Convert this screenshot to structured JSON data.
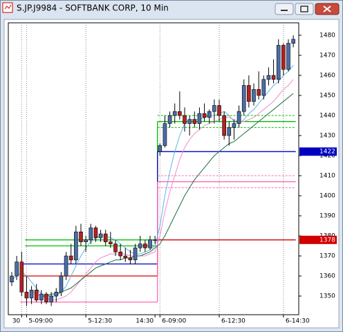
{
  "chart_data": {
    "type": "candlestick",
    "title": "S.JP.J9984 - SOFTBANK CORP, 10 Min",
    "up_color": "#4a6ea8",
    "down_color": "#b22222",
    "open": [
      1357,
      1360,
      1367,
      1352,
      1349,
      1353,
      1348,
      1351,
      1347,
      1350,
      1352,
      1360,
      1370,
      1368,
      1382,
      1377,
      1378,
      1384,
      1379,
      1381,
      1377,
      1376,
      1372,
      1370,
      1369,
      1368,
      1374,
      1376,
      1374,
      1378,
      1422,
      1425,
      1436,
      1440,
      1442,
      1440,
      1436,
      1438,
      1436,
      1441,
      1439,
      1442,
      1445,
      1440,
      1430,
      1434,
      1436,
      1442,
      1455,
      1447,
      1453,
      1450,
      1458,
      1460,
      1458,
      1475,
      1463,
      1476
    ],
    "high": [
      1362,
      1370,
      1372,
      1360,
      1355,
      1356,
      1353,
      1352,
      1352,
      1354,
      1362,
      1372,
      1376,
      1385,
      1386,
      1380,
      1386,
      1385,
      1383,
      1383,
      1382,
      1378,
      1376,
      1374,
      1373,
      1376,
      1380,
      1378,
      1380,
      1380,
      1426,
      1440,
      1442,
      1446,
      1452,
      1444,
      1440,
      1442,
      1444,
      1446,
      1443,
      1448,
      1448,
      1442,
      1437,
      1438,
      1445,
      1458,
      1460,
      1456,
      1462,
      1460,
      1464,
      1468,
      1478,
      1476,
      1478,
      1480
    ],
    "low": [
      1355,
      1358,
      1350,
      1345,
      1346,
      1347,
      1346,
      1346,
      1345,
      1347,
      1350,
      1358,
      1366,
      1366,
      1375,
      1372,
      1376,
      1377,
      1377,
      1375,
      1374,
      1370,
      1368,
      1367,
      1366,
      1366,
      1372,
      1372,
      1373,
      1376,
      1420,
      1424,
      1434,
      1436,
      1438,
      1432,
      1430,
      1434,
      1433,
      1437,
      1436,
      1436,
      1437,
      1428,
      1425,
      1428,
      1434,
      1440,
      1444,
      1445,
      1448,
      1448,
      1455,
      1456,
      1456,
      1460,
      1462,
      1474
    ],
    "close": [
      1360,
      1367,
      1352,
      1349,
      1353,
      1348,
      1351,
      1347,
      1350,
      1352,
      1360,
      1370,
      1368,
      1382,
      1377,
      1378,
      1384,
      1379,
      1381,
      1377,
      1376,
      1372,
      1370,
      1369,
      1368,
      1374,
      1376,
      1374,
      1378,
      1378,
      1425,
      1436,
      1440,
      1442,
      1440,
      1436,
      1438,
      1436,
      1441,
      1439,
      1442,
      1445,
      1440,
      1430,
      1434,
      1436,
      1442,
      1455,
      1447,
      1453,
      1450,
      1458,
      1460,
      1458,
      1475,
      1463,
      1476,
      1478
    ],
    "lines": [
      {
        "color": "#5fb4e8",
        "values": [
          1358,
          1360,
          1362,
          1360,
          1357,
          1354,
          1351,
          1350,
          1350,
          1350,
          1352,
          1355,
          1360,
          1365,
          1370,
          1374,
          1377,
          1379,
          1380,
          1380,
          1379,
          1378,
          1376,
          1374,
          1372,
          1371,
          1371,
          1372,
          1373,
          1375,
          1385,
          1400,
          1412,
          1422,
          1430,
          1436,
          1438,
          1438,
          1438,
          1439,
          1440,
          1440,
          1441,
          1442,
          1440,
          1437,
          1436,
          1438,
          1441,
          1443,
          1446,
          1449,
          1452,
          1455,
          1457,
          1460,
          1462,
          1465
        ]
      },
      {
        "color": "#f08cc8",
        "values": [
          null,
          null,
          null,
          null,
          1352,
          1351,
          1350,
          1349,
          1348,
          1348,
          1349,
          1350,
          1352,
          1355,
          1358,
          1361,
          1364,
          1367,
          1369,
          1370,
          1371,
          1371,
          1371,
          1371,
          1370,
          1370,
          1370,
          1370,
          1371,
          1372,
          1380,
          1392,
          1402,
          1410,
          1418,
          1424,
          1428,
          1431,
          1433,
          1435,
          1436,
          1437,
          1438,
          1439,
          1439,
          1438,
          1437,
          1437,
          1438,
          1439,
          1441,
          1443,
          1445,
          1447,
          1450,
          1453,
          1455,
          1458
        ]
      },
      {
        "color": "#1e6b3a",
        "values": [
          null,
          null,
          null,
          null,
          null,
          null,
          1350,
          1350,
          1351,
          1351,
          1352,
          1353,
          1354,
          1356,
          1358,
          1360,
          1362,
          1364,
          1365,
          1366,
          1367,
          1368,
          1368,
          1369,
          1369,
          1370,
          1370,
          1371,
          1372,
          1374,
          1376,
          1380,
          1385,
          1390,
          1395,
          1400,
          1404,
          1408,
          1411,
          1414,
          1417,
          1420,
          1422,
          1424,
          1426,
          1427,
          1429,
          1431,
          1433,
          1435,
          1437,
          1439,
          1441,
          1443,
          1445,
          1447,
          1449,
          1451
        ]
      }
    ],
    "levels": [
      {
        "color": "#00c000",
        "values": [
          1378,
          1437
        ]
      },
      {
        "color": "#00c000",
        "values": [
          1375,
          null
        ]
      },
      {
        "color": "#00c000",
        "dash": true,
        "values": [
          null,
          1440
        ]
      },
      {
        "color": "#00c000",
        "dash": true,
        "values": [
          null,
          1434
        ]
      },
      {
        "color": "#0000c0",
        "values": [
          1366,
          1422
        ]
      },
      {
        "color": "#d00000",
        "values": [
          1360,
          1378
        ]
      },
      {
        "color": "#ff69b4",
        "values": [
          1347,
          1407
        ]
      },
      {
        "color": "#ff69b4",
        "dash": true,
        "values": [
          null,
          1410
        ]
      },
      {
        "color": "#ff69b4",
        "dash": true,
        "values": [
          null,
          1404
        ]
      }
    ],
    "price_tags": [
      {
        "value": 1422,
        "color": "#0000c0"
      },
      {
        "value": 1378,
        "color": "#d00000"
      }
    ],
    "xlim": [
      -0.7,
      58.1
    ],
    "xticks": [
      {
        "value": 2,
        "label": "30"
      },
      {
        "value": 3,
        "label": "5-09:00"
      },
      {
        "value": 15,
        "label": "5-12:30"
      },
      {
        "value": 29,
        "label": "14:30"
      },
      {
        "value": 30,
        "label": "6-09:00"
      },
      {
        "value": 42,
        "label": "6-12:30"
      },
      {
        "value": 55,
        "label": "6-14:30"
      }
    ],
    "ylim": [
      1340.7,
      1486.2
    ],
    "yticks": [
      1350,
      1360,
      1370,
      1380,
      1390,
      1400,
      1410,
      1420,
      1430,
      1440,
      1450,
      1460,
      1470,
      1480
    ],
    "grid": true
  }
}
